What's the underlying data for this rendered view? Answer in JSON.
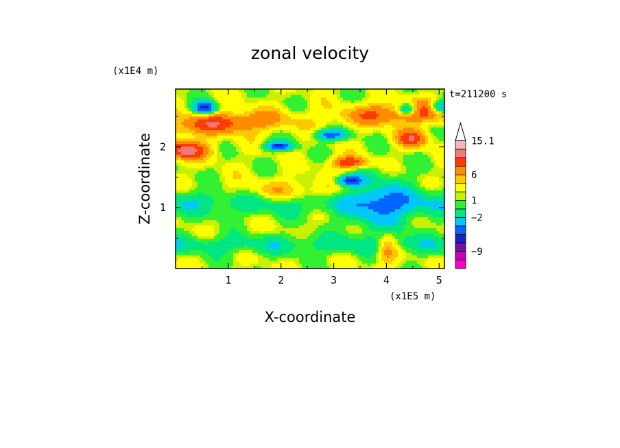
{
  "chart_data": {
    "type": "heatmap",
    "title": "zonal velocity",
    "xlabel": "X-coordinate",
    "ylabel": "Z-coordinate",
    "x_scale_label": "(x1E5 m)",
    "y_scale_label": "(x1E4 m)",
    "time_label": "t=211200 s",
    "xlim": [
      0,
      5.1
    ],
    "ylim": [
      0,
      2.95
    ],
    "x_ticks": [
      1,
      2,
      3,
      4,
      5
    ],
    "y_ticks": [
      1,
      2
    ],
    "colorbar": {
      "levels": [
        {
          "color": "#ff00c8"
        },
        {
          "color": "#c800b4"
        },
        {
          "color": "#6e14a0"
        },
        {
          "color": "#1e1ed2"
        },
        {
          "color": "#0064ff"
        },
        {
          "color": "#00c8ff"
        },
        {
          "color": "#00e682"
        },
        {
          "color": "#32f032"
        },
        {
          "color": "#c8f000"
        },
        {
          "color": "#ffff00"
        },
        {
          "color": "#ffc800"
        },
        {
          "color": "#ff8c00"
        },
        {
          "color": "#ff3c00"
        },
        {
          "color": "#f57878"
        },
        {
          "color": "#fab4b4"
        },
        {
          "color": "#ffffff"
        }
      ],
      "tick_labels": [
        "15.1",
        "6",
        "1",
        "−2",
        "−9"
      ]
    },
    "field": {
      "nx": 51,
      "nz": 30,
      "description_values": "Zonal velocity field, interpolated"
    }
  }
}
